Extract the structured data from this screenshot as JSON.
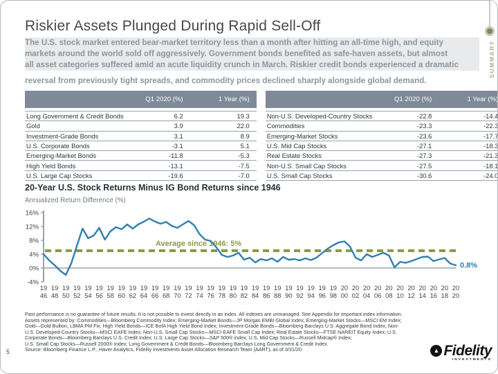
{
  "slide": {
    "page_number": "5",
    "section_label": "SUMMARY"
  },
  "title": "Riskier Assets Plunged During Rapid Sell-Off",
  "intro": {
    "highlight_lines": [
      "The U.S. stock market entered bear-market territory less than a month after hitting an all-time high, and equity",
      "markets around the world sold off aggressively. Government bonds benefited as safe-haven assets, but almost",
      "all asset categories suffered amid an acute liquidity crunch in March. Riskier credit bonds experienced a dramatic"
    ],
    "last_line": "reversal from previously tight spreads, and commodity prices declined sharply alongside global demand."
  },
  "tables": {
    "columns": [
      "Q1 2020 (%)",
      "1 Year (%)"
    ],
    "left": {
      "rows": [
        [
          "Long Government & Credit Bonds",
          "6.2",
          "19.3"
        ],
        [
          "Gold",
          "3.9",
          "22.0"
        ],
        [
          "Investment-Grade Bonds",
          "3.1",
          "8.9"
        ],
        [
          "U.S. Corporate Bonds",
          "-3.1",
          "5.1"
        ],
        [
          "Emerging-Market Bonds",
          "-11.8",
          "-5.3"
        ],
        [
          "High Yield Bonds",
          "-13.1",
          "-7.5"
        ],
        [
          "U.S. Large Cap Stocks",
          "-19.6",
          "-7.0"
        ]
      ]
    },
    "right": {
      "rows": [
        [
          "Non-U.S. Developed-Country Stocks",
          "-22.8",
          "-14.4"
        ],
        [
          "Commodities",
          "-23.3",
          "-22.3"
        ],
        [
          "Emerging-Market Stocks",
          "-23.6",
          "-17.7"
        ],
        [
          "U.S. Mid Cap Stocks",
          "-27.1",
          "-18.3"
        ],
        [
          "Real Estate Stocks",
          "-27.3",
          "-21.3"
        ],
        [
          "Non-U.S. Small Cap Stocks",
          "-27.5",
          "-18.1"
        ],
        [
          "U.S. Small Cap Stocks",
          "-30.6",
          "-24.0"
        ]
      ]
    }
  },
  "chart_data": {
    "type": "line",
    "title": "20-Year U.S. Stock Returns Minus IG Bond Returns since 1946",
    "ylabel": "Annualized Return Difference (%)",
    "x_years": {
      "start": 1946,
      "end": 2020,
      "step": 1
    },
    "values": [
      4.0,
      2.2,
      0.8,
      -0.8,
      -2.0,
      1.5,
      6.5,
      11.4,
      8.6,
      9.4,
      11.6,
      8.2,
      10.6,
      11.8,
      11.2,
      12.6,
      11.4,
      12.6,
      13.4,
      14.3,
      13.4,
      12.8,
      13.3,
      12.2,
      11.6,
      12.6,
      13.6,
      12.4,
      9.8,
      8.2,
      7.8,
      6.0,
      3.8,
      3.2,
      3.6,
      4.4,
      2.4,
      3.0,
      1.6,
      2.6,
      2.2,
      2.8,
      1.8,
      3.2,
      2.4,
      2.6,
      2.2,
      2.8,
      2.3,
      3.0,
      4.3,
      5.6,
      6.6,
      7.4,
      7.7,
      6.2,
      3.0,
      2.2,
      4.0,
      3.2,
      3.8,
      4.4,
      3.6,
      0.2,
      1.8,
      1.5,
      2.0,
      2.6,
      3.2,
      3.3,
      2.0,
      2.5,
      2.9,
      1.3,
      0.8
    ],
    "ylim": [
      -4,
      16
    ],
    "yticks": [
      "16%",
      "12%",
      "8%",
      "4%",
      "0%",
      "-4%"
    ],
    "xtick_years": [
      1946,
      1948,
      1950,
      1952,
      1954,
      1956,
      1958,
      1960,
      1962,
      1964,
      1966,
      1968,
      1970,
      1972,
      1974,
      1976,
      1978,
      1980,
      1982,
      1984,
      1986,
      1988,
      1990,
      1992,
      1994,
      1996,
      1998,
      2000,
      2002,
      2004,
      2006,
      2008,
      2010,
      2012,
      2014,
      2016,
      2018,
      2020
    ],
    "average_line": {
      "value": 5,
      "label": "Average since 1946: 5%"
    },
    "end_label": "0.8%",
    "grid": "zero-line only",
    "legend": "none",
    "colors": {
      "line": "#2e7fae",
      "average": "#8a9a45",
      "axis": "#9aa0a4",
      "tick_text": "#3f4346"
    }
  },
  "footnote": {
    "lines": [
      "Past performance is no guarantee of future results. It is not possible to invest directly in an index. All indexes are unmanaged. See Appendix for important index information.",
      "Assets represented by: Commodities—Bloomberg Commodity Index; Emerging-Market Bonds—JP Morgan EMBI Global Index; Emerging-Market Stocks—MSCI EM Index;",
      "Gold—Gold Bullion, LBMA PM Fix; High Yield Bonds—ICE BofA High Yield Bond Index; Investment-Grade Bonds—Bloomberg Barclays U.S. Aggregate Bond Index; Non-",
      "U.S. Developed-Country Stocks—MSCI EAFE Index; Non-U.S. Small Cap Stocks—MSCI EAFE Small Cap Index; Real Estate Stocks—FTSE NAREIT Equity Index; U.S.",
      "Corporate Bonds—Bloomberg Barclays U.S. Credit Index; U.S. Large Cap Stocks—S&P 500® index; U.S. Mid Cap Stocks—Russell Midcap® Index;",
      "U.S. Small Cap Stocks—Russell 2000® Index; Long Government & Credit Bonds—Bloomberg Barclays Long Government & Credit Index.",
      "Source: Bloomberg Finance L.P., Haver Analytics, Fidelity Investments Asset Allocation Research Team (AART), as of 3/31/20."
    ]
  },
  "logo": {
    "name": "Fidelity",
    "sub": "INVESTMENTS",
    "pyramid_icon": "▲"
  }
}
